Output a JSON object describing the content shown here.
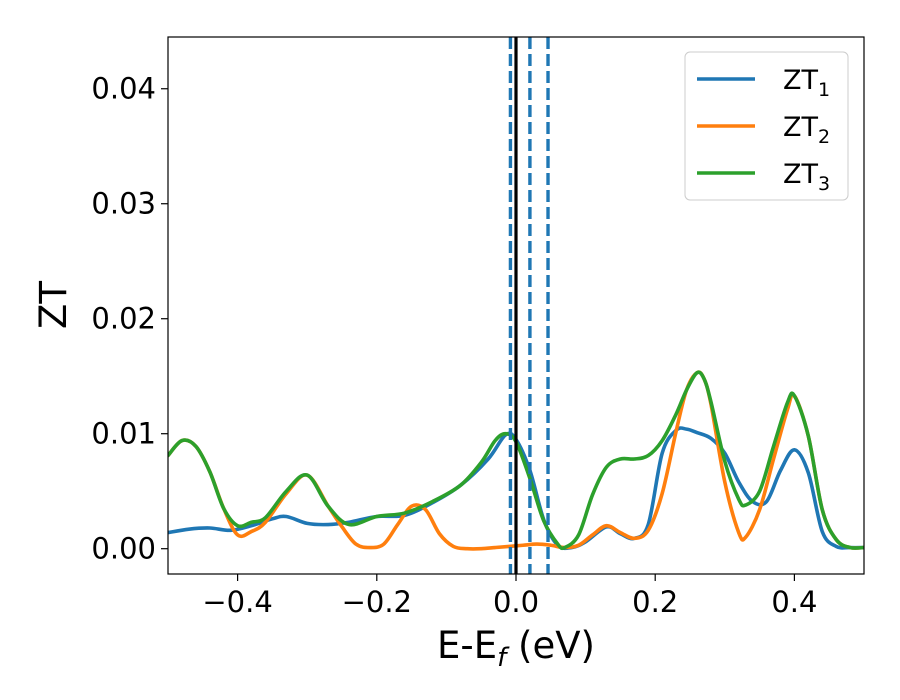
{
  "chart_data": {
    "type": "line",
    "title": "",
    "xlabel": {
      "main": "E-E",
      "sub": "f",
      "rest": " (eV)"
    },
    "ylabel": "ZT",
    "xlim": [
      -0.5,
      0.5
    ],
    "ylim": [
      -0.0022,
      0.0445
    ],
    "xticks": [
      {
        "value": -0.4,
        "label": "−0.4"
      },
      {
        "value": -0.2,
        "label": "−0.2"
      },
      {
        "value": 0.0,
        "label": "0.0"
      },
      {
        "value": 0.2,
        "label": "0.2"
      },
      {
        "value": 0.4,
        "label": "0.4"
      }
    ],
    "yticks": [
      {
        "value": 0.0,
        "label": "0.00"
      },
      {
        "value": 0.01,
        "label": "0.01"
      },
      {
        "value": 0.02,
        "label": "0.02"
      },
      {
        "value": 0.03,
        "label": "0.03"
      },
      {
        "value": 0.04,
        "label": "0.04"
      }
    ],
    "grid": false,
    "legend_position": "top-right",
    "vertical_lines": [
      {
        "x": 0.0,
        "style": "solid",
        "color": "#000000"
      },
      {
        "x": -0.008,
        "style": "dashed",
        "color": "#1f77b4"
      },
      {
        "x": 0.02,
        "style": "dashed",
        "color": "#1f77b4"
      },
      {
        "x": 0.046,
        "style": "dashed",
        "color": "#1f77b4"
      }
    ],
    "series": [
      {
        "name": "ZT",
        "sub": "1",
        "color": "#1f77b4",
        "x": [
          -0.5,
          -0.47,
          -0.44,
          -0.41,
          -0.38,
          -0.35,
          -0.33,
          -0.3,
          -0.27,
          -0.24,
          -0.2,
          -0.16,
          -0.12,
          -0.08,
          -0.04,
          -0.015,
          0.0,
          0.02,
          0.04,
          0.06,
          0.08,
          0.1,
          0.13,
          0.15,
          0.17,
          0.19,
          0.21,
          0.23,
          0.245,
          0.26,
          0.28,
          0.3,
          0.32,
          0.34,
          0.36,
          0.38,
          0.4,
          0.42,
          0.44,
          0.46,
          0.48,
          0.5
        ],
        "y": [
          0.0014,
          0.0017,
          0.0018,
          0.0016,
          0.002,
          0.0026,
          0.0028,
          0.0022,
          0.0021,
          0.0023,
          0.0028,
          0.0029,
          0.004,
          0.0055,
          0.0078,
          0.0099,
          0.0095,
          0.0068,
          0.0025,
          0.0003,
          0.0001,
          0.0006,
          0.0019,
          0.0013,
          0.0009,
          0.0021,
          0.0083,
          0.0103,
          0.0104,
          0.0101,
          0.0096,
          0.0083,
          0.0058,
          0.0041,
          0.0041,
          0.0068,
          0.0086,
          0.0066,
          0.0015,
          0.0002,
          0.0001,
          0.0001
        ]
      },
      {
        "name": "ZT",
        "sub": "2",
        "color": "#ff7f0e",
        "x": [
          -0.5,
          -0.48,
          -0.46,
          -0.44,
          -0.42,
          -0.4,
          -0.38,
          -0.36,
          -0.33,
          -0.3,
          -0.27,
          -0.25,
          -0.23,
          -0.21,
          -0.19,
          -0.17,
          -0.15,
          -0.13,
          -0.11,
          -0.09,
          -0.07,
          -0.05,
          -0.03,
          -0.01,
          0.01,
          0.03,
          0.05,
          0.07,
          0.09,
          0.11,
          0.13,
          0.15,
          0.17,
          0.19,
          0.21,
          0.23,
          0.245,
          0.26,
          0.27,
          0.28,
          0.3,
          0.32,
          0.33,
          0.35,
          0.37,
          0.39,
          0.4,
          0.42,
          0.44,
          0.46,
          0.48,
          0.5
        ],
        "y": [
          0.0081,
          0.0094,
          0.0089,
          0.0067,
          0.0035,
          0.0012,
          0.0015,
          0.0023,
          0.0048,
          0.0064,
          0.0037,
          0.0019,
          0.0004,
          0.0001,
          0.0004,
          0.0021,
          0.0037,
          0.0034,
          0.0013,
          0.0002,
          0.0,
          0.0,
          0.0001,
          0.0002,
          0.0003,
          0.0004,
          0.0003,
          0.0001,
          0.0003,
          0.0012,
          0.002,
          0.0014,
          0.0009,
          0.0016,
          0.0048,
          0.0102,
          0.0138,
          0.0153,
          0.0148,
          0.0126,
          0.0058,
          0.0014,
          0.001,
          0.0034,
          0.0078,
          0.0121,
          0.0133,
          0.0098,
          0.0034,
          0.0008,
          0.0001,
          0.0001
        ]
      },
      {
        "name": "ZT",
        "sub": "3",
        "color": "#2ca02c",
        "x": [
          -0.5,
          -0.48,
          -0.46,
          -0.44,
          -0.42,
          -0.4,
          -0.38,
          -0.36,
          -0.33,
          -0.3,
          -0.27,
          -0.24,
          -0.2,
          -0.16,
          -0.12,
          -0.08,
          -0.05,
          -0.03,
          -0.015,
          0.0,
          0.02,
          0.04,
          0.06,
          0.07,
          0.09,
          0.11,
          0.13,
          0.15,
          0.17,
          0.19,
          0.21,
          0.23,
          0.245,
          0.26,
          0.27,
          0.28,
          0.3,
          0.32,
          0.33,
          0.35,
          0.37,
          0.39,
          0.4,
          0.42,
          0.44,
          0.46,
          0.48,
          0.5
        ],
        "y": [
          0.0081,
          0.0094,
          0.0089,
          0.0067,
          0.0035,
          0.002,
          0.0023,
          0.0027,
          0.005,
          0.0064,
          0.0037,
          0.0021,
          0.0028,
          0.0031,
          0.0041,
          0.0055,
          0.0075,
          0.0094,
          0.01,
          0.0093,
          0.0061,
          0.0024,
          0.0004,
          0.0001,
          0.0012,
          0.0047,
          0.0071,
          0.0078,
          0.0078,
          0.0081,
          0.0094,
          0.0117,
          0.0138,
          0.0153,
          0.0148,
          0.0128,
          0.0076,
          0.0043,
          0.0038,
          0.005,
          0.0089,
          0.0127,
          0.0133,
          0.0098,
          0.0034,
          0.0008,
          0.0001,
          0.0001
        ]
      }
    ]
  }
}
